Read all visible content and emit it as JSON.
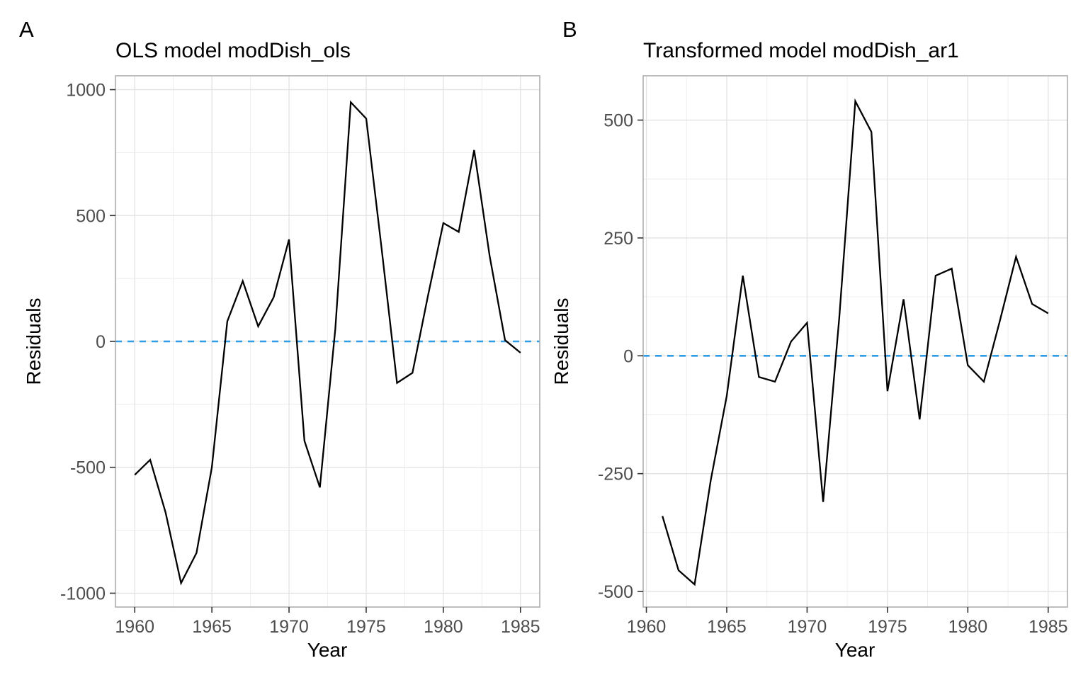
{
  "figure": {
    "panel_labels": [
      "A",
      "B"
    ]
  },
  "colors": {
    "series_line": "#000000",
    "zero_line_blue": "#2E9CE6",
    "grid_major": "#E2E2E2",
    "grid_minor": "#ECECEC",
    "panel_border": "#ADADAD",
    "tick_mark": "#333333",
    "tick_label": "#4D4D4D",
    "background": "#FFFFFF"
  },
  "chart_data": [
    {
      "type": "line",
      "panel_label": "A",
      "title": "OLS model modDish_ols",
      "xlabel": "Year",
      "ylabel": "Residuals",
      "x": [
        1960,
        1961,
        1962,
        1963,
        1964,
        1965,
        1966,
        1967,
        1968,
        1969,
        1970,
        1971,
        1972,
        1973,
        1974,
        1975,
        1976,
        1977,
        1978,
        1979,
        1980,
        1981,
        1982,
        1983,
        1984,
        1985
      ],
      "y": [
        -530,
        -470,
        -680,
        -960,
        -840,
        -500,
        80,
        240,
        60,
        175,
        405,
        -395,
        -580,
        50,
        950,
        885,
        370,
        -165,
        -125,
        180,
        470,
        435,
        760,
        340,
        5,
        -45
      ],
      "xlim": [
        1958.75,
        1986.25
      ],
      "ylim": [
        -1055,
        1055
      ],
      "x_ticks": [
        1960,
        1965,
        1970,
        1975,
        1980,
        1985
      ],
      "y_ticks": [
        1000,
        500,
        0,
        -500,
        -1000
      ],
      "x_minor": [
        1962.5,
        1967.5,
        1972.5,
        1977.5,
        1982.5
      ],
      "y_minor": [
        750,
        250,
        -250,
        -750
      ],
      "ref_line": {
        "y": 0,
        "style": "dashed"
      },
      "grid": true,
      "legend_position": "none"
    },
    {
      "type": "line",
      "panel_label": "B",
      "title": "Transformed model modDish_ar1",
      "xlabel": "Year",
      "ylabel": "Residuals",
      "x": [
        1961,
        1962,
        1963,
        1964,
        1965,
        1966,
        1967,
        1968,
        1969,
        1970,
        1971,
        1972,
        1973,
        1974,
        1975,
        1976,
        1977,
        1978,
        1979,
        1980,
        1981,
        1982,
        1983,
        1984,
        1985
      ],
      "y": [
        -340,
        -455,
        -485,
        -265,
        -85,
        170,
        -45,
        -55,
        30,
        70,
        -310,
        80,
        540,
        475,
        -75,
        120,
        -135,
        170,
        185,
        -20,
        -55,
        75,
        210,
        110,
        90
      ],
      "xlim": [
        1959.8,
        1986.2
      ],
      "ylim": [
        -533,
        594
      ],
      "x_ticks": [
        1960,
        1965,
        1970,
        1975,
        1980,
        1985
      ],
      "y_ticks": [
        500,
        250,
        0,
        -250,
        -500
      ],
      "x_minor": [
        1962.5,
        1967.5,
        1972.5,
        1977.5,
        1982.5
      ],
      "y_minor": [
        375,
        125,
        -125,
        -375
      ],
      "ref_line": {
        "y": 0,
        "style": "dashed"
      },
      "grid": true,
      "legend_position": "none"
    }
  ]
}
